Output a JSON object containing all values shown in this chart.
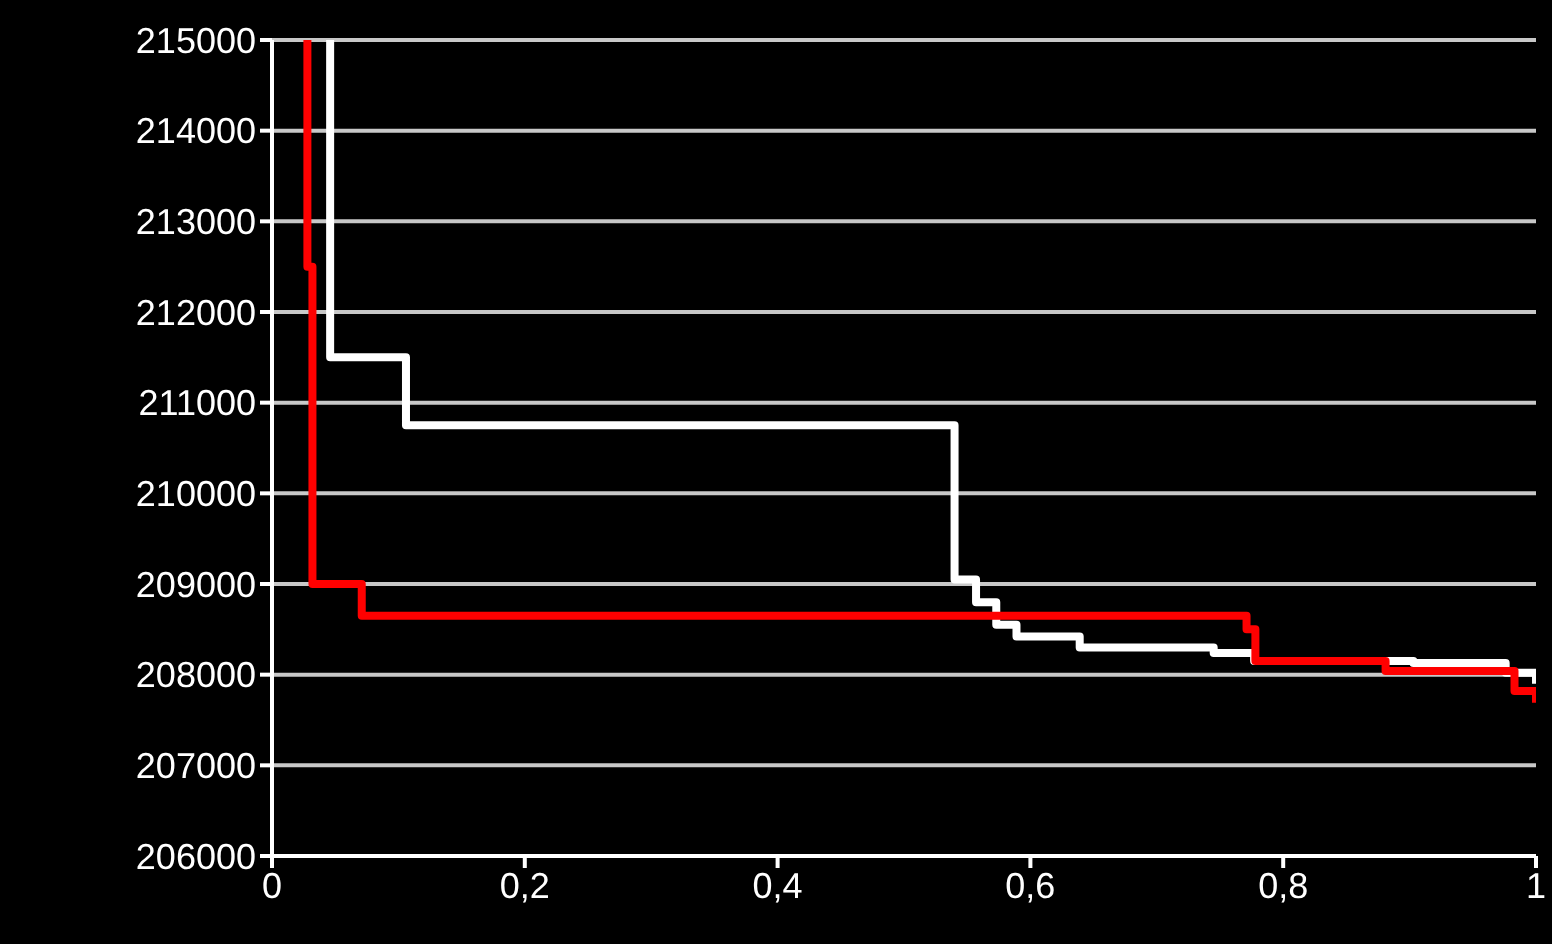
{
  "chart_data": {
    "type": "step",
    "xlim": [
      0,
      1
    ],
    "ylim": [
      206000,
      215000
    ],
    "xticks": [
      0,
      {
        "value": 0.2,
        "label": "0,2"
      },
      {
        "value": 0.4,
        "label": "0,4"
      },
      {
        "value": 0.6,
        "label": "0,6"
      },
      {
        "value": 0.8,
        "label": "0,8"
      },
      1
    ],
    "yticks": [
      206000,
      207000,
      208000,
      209000,
      210000,
      211000,
      212000,
      213000,
      214000,
      215000
    ],
    "grid": "y",
    "marker": "none",
    "line_style": "solid",
    "series": [
      {
        "color": "#ffffff",
        "x": [
          0.046,
          0.046,
          0.106,
          0.54,
          0.557,
          0.573,
          0.589,
          0.639,
          0.745,
          0.777,
          0.903,
          0.976,
          1
        ],
        "values": [
          215000,
          211500,
          210750,
          209050,
          208800,
          208550,
          208420,
          208300,
          208240,
          208150,
          208130,
          208020,
          207900
        ]
      },
      {
        "color": "#ff0000",
        "x": [
          0.028,
          0.028,
          0.032,
          0.071,
          0.771,
          0.778,
          0.881,
          0.975,
          0.983,
          1
        ],
        "values": [
          215000,
          212500,
          209000,
          208650,
          208500,
          208150,
          208040,
          208040,
          207820,
          207690
        ]
      }
    ]
  }
}
